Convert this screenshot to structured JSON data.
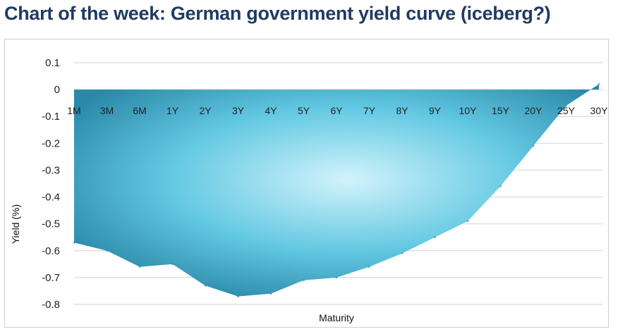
{
  "page": {
    "title": "Chart of the week: German government yield curve (iceberg?)"
  },
  "chart_data": {
    "type": "area",
    "title": "Chart of the week: German government yield curve (iceberg?)",
    "xlabel": "Maturity",
    "ylabel": "Yield (%)",
    "categories": [
      "1M",
      "3M",
      "6M",
      "1Y",
      "2Y",
      "3Y",
      "4Y",
      "5Y",
      "6Y",
      "7Y",
      "8Y",
      "9Y",
      "10Y",
      "15Y",
      "20Y",
      "25Y",
      "30Y"
    ],
    "series": [
      {
        "values": [
          -0.57,
          -0.6,
          -0.66,
          -0.65,
          -0.73,
          -0.77,
          -0.76,
          -0.71,
          -0.7,
          -0.66,
          -0.61,
          -0.55,
          -0.49,
          -0.36,
          -0.21,
          -0.06,
          0.02
        ]
      }
    ],
    "ylim": [
      -0.8,
      0.1
    ],
    "yticks": [
      0.1,
      0,
      -0.1,
      -0.2,
      -0.3,
      -0.4,
      -0.5,
      -0.6,
      -0.7,
      -0.8
    ],
    "ytick_labels": [
      "0.1",
      "0",
      "-0.1",
      "-0.2",
      "-0.3",
      "-0.4",
      "-0.5",
      "-0.6",
      "-0.7",
      "-0.8"
    ],
    "grid": true,
    "legend": "none",
    "colors": {
      "fill_light": "#c8eef8",
      "fill_mid": "#5fc6e0",
      "fill_dark": "#2a88a8",
      "grid": "#d9d9d9",
      "title": "#1f3b63"
    }
  }
}
